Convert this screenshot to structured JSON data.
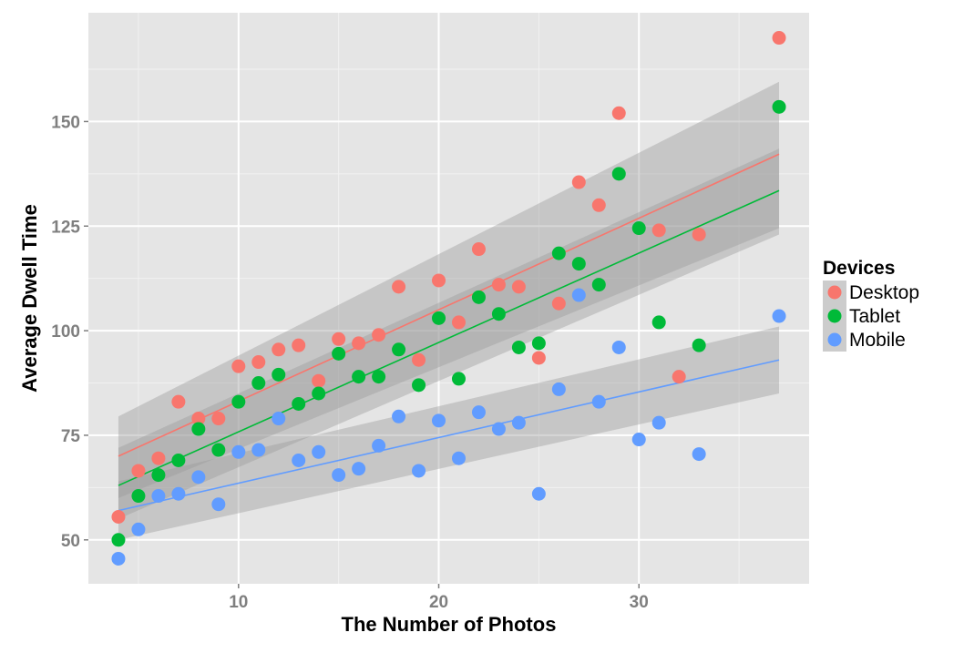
{
  "chart_data": {
    "type": "scatter",
    "title": "",
    "xlabel": "The Number of Photos",
    "ylabel": "Average Dwell Time",
    "xlim": [
      2.5,
      38.5
    ],
    "ylim": [
      39.5,
      176
    ],
    "x_ticks": [
      10,
      20,
      30
    ],
    "y_ticks": [
      50,
      75,
      100,
      125,
      150
    ],
    "grid": true,
    "legend_title": "Devices",
    "legend_position": "right",
    "series": [
      {
        "name": "Desktop",
        "color": "#f8766d",
        "trend": {
          "x": [
            4,
            37
          ],
          "y": [
            70,
            142.2
          ],
          "band_lower": [
            60,
            124.5
          ],
          "band_upper": [
            79.5,
            159.5
          ]
        },
        "points": [
          [
            4,
            55.5
          ],
          [
            5,
            66.5
          ],
          [
            6,
            69.5
          ],
          [
            7,
            83
          ],
          [
            8,
            79
          ],
          [
            9,
            79
          ],
          [
            10,
            91.5
          ],
          [
            11,
            92.5
          ],
          [
            12,
            95.5
          ],
          [
            13,
            96.5
          ],
          [
            14,
            88
          ],
          [
            15,
            98
          ],
          [
            16,
            97
          ],
          [
            17,
            99
          ],
          [
            18,
            110.5
          ],
          [
            19,
            93
          ],
          [
            20,
            112
          ],
          [
            21,
            102
          ],
          [
            22,
            119.5
          ],
          [
            23,
            111
          ],
          [
            24,
            110.5
          ],
          [
            25,
            93.5
          ],
          [
            26,
            106.5
          ],
          [
            27,
            135.5
          ],
          [
            28,
            130
          ],
          [
            29,
            152
          ],
          [
            31,
            124
          ],
          [
            32,
            89
          ],
          [
            33,
            123
          ],
          [
            37,
            170
          ]
        ]
      },
      {
        "name": "Tablet",
        "color": "#00ba38",
        "trend": {
          "x": [
            4,
            37
          ],
          "y": [
            63,
            133.5
          ],
          "band_lower": [
            55,
            123
          ],
          "band_upper": [
            72,
            143.5
          ]
        },
        "points": [
          [
            4,
            50
          ],
          [
            5,
            60.5
          ],
          [
            6,
            65.5
          ],
          [
            7,
            69
          ],
          [
            8,
            76.5
          ],
          [
            9,
            71.5
          ],
          [
            10,
            83
          ],
          [
            11,
            87.5
          ],
          [
            12,
            89.5
          ],
          [
            13,
            82.5
          ],
          [
            14,
            85
          ],
          [
            15,
            94.5
          ],
          [
            16,
            89
          ],
          [
            17,
            89
          ],
          [
            18,
            95.5
          ],
          [
            19,
            87
          ],
          [
            20,
            103
          ],
          [
            21,
            88.5
          ],
          [
            22,
            108
          ],
          [
            23,
            104
          ],
          [
            24,
            96
          ],
          [
            25,
            97
          ],
          [
            26,
            118.5
          ],
          [
            27,
            116
          ],
          [
            28,
            111
          ],
          [
            29,
            137.5
          ],
          [
            30,
            124.5
          ],
          [
            31,
            102
          ],
          [
            33,
            96.5
          ],
          [
            37,
            153.5
          ]
        ]
      },
      {
        "name": "Mobile",
        "color": "#619cff",
        "trend": {
          "x": [
            4,
            37
          ],
          "y": [
            57,
            93
          ],
          "band_lower": [
            50,
            85
          ],
          "band_upper": [
            64,
            101
          ]
        },
        "points": [
          [
            4,
            45.5
          ],
          [
            5,
            52.5
          ],
          [
            6,
            60.5
          ],
          [
            7,
            61
          ],
          [
            8,
            65
          ],
          [
            9,
            58.5
          ],
          [
            10,
            71
          ],
          [
            11,
            71.5
          ],
          [
            12,
            79
          ],
          [
            13,
            69
          ],
          [
            14,
            71
          ],
          [
            15,
            65.5
          ],
          [
            16,
            67
          ],
          [
            17,
            72.5
          ],
          [
            18,
            79.5
          ],
          [
            19,
            66.5
          ],
          [
            20,
            78.5
          ],
          [
            21,
            69.5
          ],
          [
            22,
            80.5
          ],
          [
            23,
            76.5
          ],
          [
            24,
            78
          ],
          [
            25,
            61
          ],
          [
            26,
            86
          ],
          [
            27,
            108.5
          ],
          [
            28,
            83
          ],
          [
            29,
            96
          ],
          [
            30,
            74
          ],
          [
            31,
            78
          ],
          [
            33,
            70.5
          ],
          [
            37,
            103.5
          ]
        ]
      }
    ]
  }
}
